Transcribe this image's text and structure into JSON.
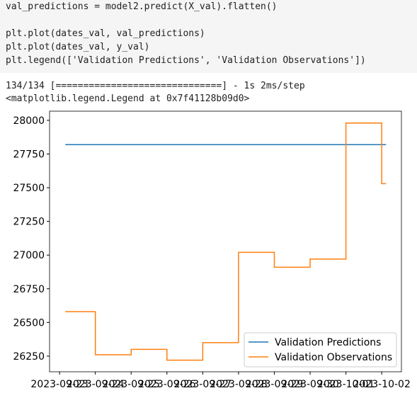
{
  "code": [
    "val_predictions = model2.predict(X_val).flatten()",
    "",
    "plt.plot(dates_val, val_predictions)",
    "plt.plot(dates_val, y_val)",
    "plt.legend(['Validation Predictions', 'Validation Observations'])"
  ],
  "output": [
    "134/134 [==============================] - 1s 2ms/step",
    "<matplotlib.legend.Legend at 0x7f41128b09d0>"
  ],
  "chart_data": {
    "type": "line",
    "drawstyle": "steps-post",
    "x": [
      "2023-09-23",
      "2023-09-24",
      "2023-09-25",
      "2023-09-26",
      "2023-09-27",
      "2023-09-28",
      "2023-09-29",
      "2023-09-30",
      "2023-10-01",
      "2023-10-02"
    ],
    "series": [
      {
        "name": "Validation Predictions",
        "color": "#1f77b4",
        "values": [
          27820,
          27820,
          27820,
          27820,
          27820,
          27820,
          27820,
          27820,
          27820,
          27820
        ]
      },
      {
        "name": "Validation Observations",
        "color": "#ff7f0e",
        "values": [
          26580,
          26260,
          26300,
          26220,
          26350,
          27020,
          26910,
          26970,
          27980,
          27530
        ]
      }
    ],
    "xlim": [
      "2023-09-22T17:18",
      "2023-10-02T13:12"
    ],
    "xticks": [
      "2023-09-23",
      "2023-09-24",
      "2023-09-25",
      "2023-09-26",
      "2023-09-27",
      "2023-09-28",
      "2023-09-29",
      "2023-09-30",
      "2023-10-01",
      "2023-10-02"
    ],
    "ylim": [
      26134,
      28068
    ],
    "yticks": [
      26250,
      26500,
      26750,
      27000,
      27250,
      27500,
      27750,
      28000
    ],
    "legend": "lower right"
  }
}
